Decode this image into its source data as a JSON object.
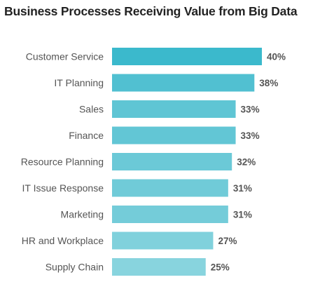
{
  "chart_data": {
    "type": "bar",
    "orientation": "horizontal",
    "title": "Business Processes Receiving Value from Big Data",
    "categories": [
      "Customer Service",
      "IT Planning",
      "Sales",
      "Finance",
      "Resource Planning",
      "IT Issue Response",
      "Marketing",
      "HR and Workplace",
      "Supply Chain"
    ],
    "values": [
      40,
      38,
      33,
      33,
      32,
      31,
      31,
      27,
      25
    ],
    "value_labels": [
      "40%",
      "38%",
      "33%",
      "33%",
      "32%",
      "31%",
      "31%",
      "27%",
      "25%"
    ],
    "unit": "%",
    "xlim": [
      0,
      40
    ],
    "grid": false,
    "legend": "none",
    "colors": [
      "#3bb9cc",
      "#51c0d1",
      "#5fc5d4",
      "#62c6d5",
      "#6bc9d7",
      "#70cbd8",
      "#74ccd9",
      "#80d1dc",
      "#88d4de"
    ]
  }
}
